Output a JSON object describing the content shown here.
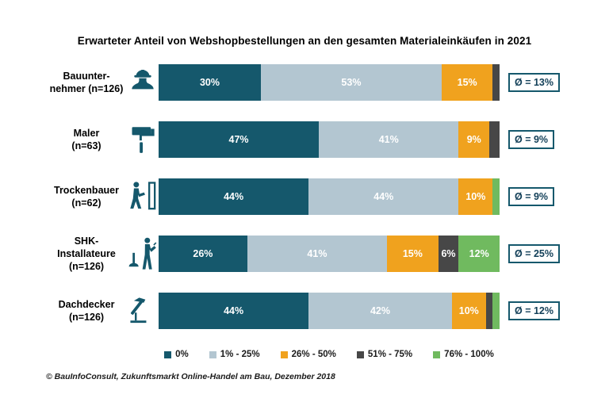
{
  "title": "Erwarteter Anteil von Webshopbestellungen an den gesamten Materialeinkäufen in 2021",
  "source": "© BauInfoConsult, Zukunftsmarkt Online-Handel am Bau, Dezember 2018",
  "colors": {
    "teal": "#15586C",
    "lightblue": "#B3C6D1",
    "orange": "#F0A21E",
    "darkgray": "#474747",
    "green": "#70BA5F",
    "badge_border": "#15586C",
    "badge_text": "#123F58"
  },
  "chart_data": {
    "type": "bar",
    "orientation": "horizontal",
    "stacked": true,
    "unit": "percent",
    "title": "Erwarteter Anteil von Webshopbestellungen an den gesamten Materialeinkäufen in 2021",
    "categories": [
      "Bauunternehmer (n=126)",
      "Maler (n=63)",
      "Trockenbauer (n=62)",
      "SHK-Installateure (n=126)",
      "Dachdecker (n=126)"
    ],
    "series": [
      {
        "name": "0%",
        "color": "#15586C",
        "values": [
          30,
          47,
          44,
          26,
          44
        ]
      },
      {
        "name": "1% - 25%",
        "color": "#B3C6D1",
        "values": [
          53,
          41,
          44,
          41,
          42
        ]
      },
      {
        "name": "26% - 50%",
        "color": "#F0A21E",
        "values": [
          15,
          9,
          10,
          15,
          10
        ]
      },
      {
        "name": "51% - 75%",
        "color": "#474747",
        "values": [
          2,
          3,
          0,
          6,
          2
        ]
      },
      {
        "name": "76% - 100%",
        "color": "#70BA5F",
        "values": [
          0,
          0,
          2,
          12,
          2
        ]
      }
    ],
    "averages": [
      "Ø = 13%",
      "Ø = 9%",
      "Ø = 9%",
      "Ø = 25%",
      "Ø = 12%"
    ],
    "legend_position": "bottom",
    "xlim": [
      0,
      100
    ]
  },
  "rows": [
    {
      "label_line1": "Bauunter-",
      "label_line2": "nehmer (n=126)",
      "icon": "construction-worker-icon",
      "average": "Ø = 13%"
    },
    {
      "label_line1": "Maler",
      "label_line2": "(n=63)",
      "icon": "paint-roller-icon",
      "average": "Ø = 9%"
    },
    {
      "label_line1": "Trockenbauer",
      "label_line2": "(n=62)",
      "icon": "drywall-installer-icon",
      "average": "Ø = 9%"
    },
    {
      "label_line1": "SHK-Installateure",
      "label_line2": "(n=126)",
      "icon": "plumber-icon",
      "average": "Ø = 25%"
    },
    {
      "label_line1": "Dachdecker",
      "label_line2": "(n=126)",
      "icon": "roofer-hammer-icon",
      "average": "Ø = 12%"
    }
  ],
  "legend": [
    {
      "label": "0%",
      "color": "#15586C"
    },
    {
      "label": "1% - 25%",
      "color": "#B3C6D1"
    },
    {
      "label": "26% - 50%",
      "color": "#F0A21E"
    },
    {
      "label": "51% - 75%",
      "color": "#474747"
    },
    {
      "label": "76% - 100%",
      "color": "#70BA5F"
    }
  ]
}
